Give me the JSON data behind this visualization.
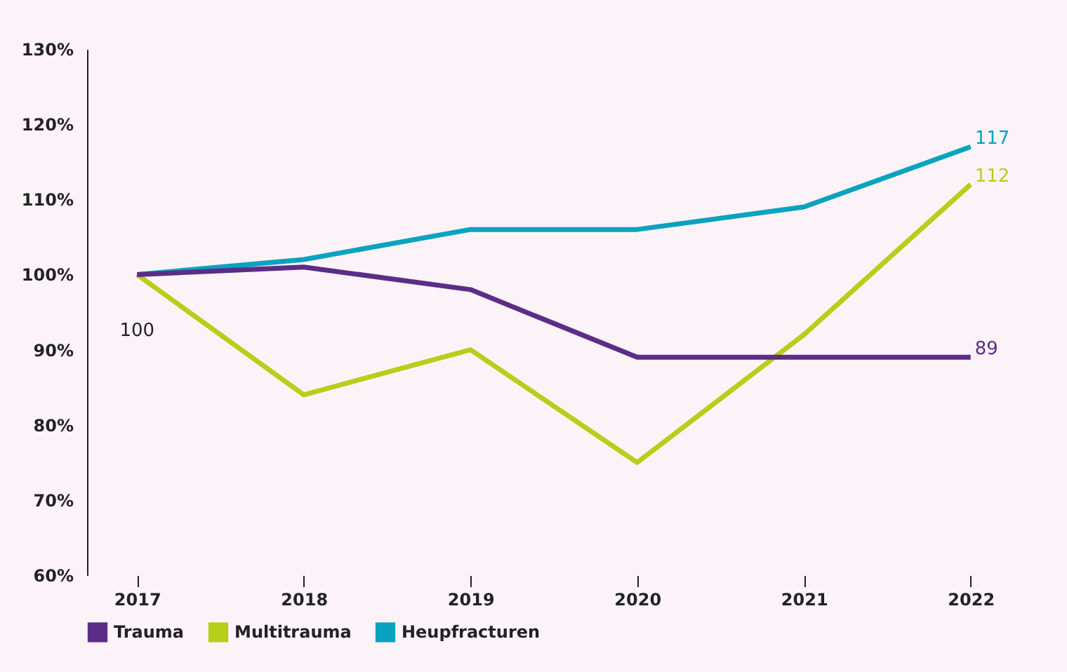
{
  "chart_data": {
    "type": "line",
    "categories": [
      "2017",
      "2018",
      "2019",
      "2020",
      "2021",
      "2022"
    ],
    "series": [
      {
        "name": "Trauma",
        "color": "#5b2d86",
        "values": [
          100,
          101,
          98,
          89,
          89,
          89
        ],
        "value_labels": [
          null,
          null,
          null,
          null,
          null,
          "89"
        ]
      },
      {
        "name": "Multitrauma",
        "color": "#b5cf1a",
        "values": [
          100,
          84,
          90,
          75,
          92,
          112
        ],
        "value_labels": [
          null,
          null,
          null,
          null,
          null,
          "112"
        ]
      },
      {
        "name": "Heupfracturen",
        "color": "#0aa3bf",
        "values": [
          100,
          102,
          106,
          106,
          109,
          117
        ],
        "value_labels": [
          null,
          null,
          null,
          null,
          null,
          "117"
        ]
      }
    ],
    "annotations": [
      {
        "text": "100",
        "x": "2017",
        "y": 100
      }
    ],
    "ylim": [
      60,
      130
    ],
    "yticks": [
      {
        "value": 60,
        "label": "60%"
      },
      {
        "value": 70,
        "label": "70%"
      },
      {
        "value": 80,
        "label": "80%"
      },
      {
        "value": 90,
        "label": "90%"
      },
      {
        "value": 100,
        "label": "100%"
      },
      {
        "value": 110,
        "label": "110%"
      },
      {
        "value": 120,
        "label": "120%"
      },
      {
        "value": 130,
        "label": "130%"
      }
    ],
    "grid": false,
    "legend": "bottom"
  }
}
